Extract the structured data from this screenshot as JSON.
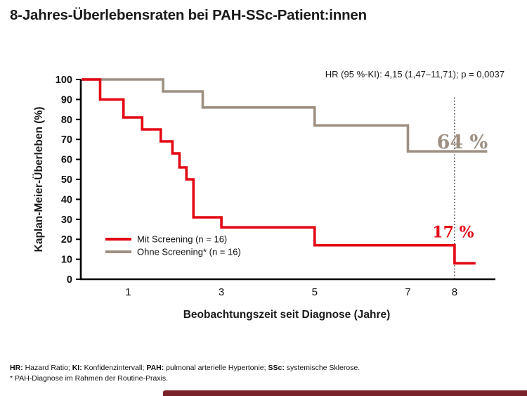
{
  "page": {
    "title": "8-Jahres-Überlebensraten bei PAH-SSc-Patient:innen"
  },
  "theme": {
    "text": "#1a1a1a",
    "red": "#e30613",
    "taupe": "#9d9083",
    "dotted_line": "#333333",
    "footer_bar": "#7a232b"
  },
  "chart_data": {
    "type": "line",
    "subtype": "kaplan_meier_step",
    "annotation": "HR (95 %-KI): 4,15 (1,47–11,71); p = 0,0037",
    "xlabel": "Beobachtungszeit seit Diagnose (Jahre)",
    "ylabel": "Kaplan-Meier-Überleben (%)",
    "xlim": [
      0,
      8.8
    ],
    "ylim": [
      0,
      100
    ],
    "xticks": [
      1,
      3,
      5,
      7,
      8
    ],
    "yticks": [
      0,
      10,
      20,
      30,
      40,
      50,
      60,
      70,
      80,
      90,
      100
    ],
    "grid": false,
    "legend_position": "lower-left",
    "reference_line_x": 8,
    "series": [
      {
        "id": "mit-screening",
        "name": "Mit Screening (n = 16)",
        "color": "#e30613",
        "end_value": 17,
        "end_label": "17 %",
        "points": [
          [
            0,
            100
          ],
          [
            0.4,
            100
          ],
          [
            0.4,
            90
          ],
          [
            0.9,
            90
          ],
          [
            0.9,
            81
          ],
          [
            1.3,
            81
          ],
          [
            1.3,
            75
          ],
          [
            1.7,
            75
          ],
          [
            1.7,
            69
          ],
          [
            1.95,
            69
          ],
          [
            1.95,
            63
          ],
          [
            2.1,
            63
          ],
          [
            2.1,
            56
          ],
          [
            2.25,
            56
          ],
          [
            2.25,
            50
          ],
          [
            2.4,
            50
          ],
          [
            2.4,
            31
          ],
          [
            3.0,
            31
          ],
          [
            3.0,
            26
          ],
          [
            5.0,
            26
          ],
          [
            5.0,
            17
          ],
          [
            8.0,
            17
          ],
          [
            8.0,
            8
          ],
          [
            8.45,
            8
          ]
        ]
      },
      {
        "id": "ohne-screening",
        "name": "Ohne Screening* (n = 16)",
        "color": "#9d9083",
        "end_value": 64,
        "end_label": "64 %",
        "points": [
          [
            0,
            100
          ],
          [
            1.75,
            100
          ],
          [
            1.75,
            94
          ],
          [
            2.6,
            94
          ],
          [
            2.6,
            86
          ],
          [
            5.0,
            86
          ],
          [
            5.0,
            77
          ],
          [
            7.0,
            77
          ],
          [
            7.0,
            64
          ],
          [
            8.7,
            64
          ]
        ]
      }
    ]
  },
  "footnotes": {
    "line1_segments": [
      {
        "t": "HR:",
        "b": true
      },
      {
        "t": " Hazard Ratio; ",
        "b": false
      },
      {
        "t": "KI:",
        "b": true
      },
      {
        "t": " Konfidenzintervall; ",
        "b": false
      },
      {
        "t": "PAH:",
        "b": true
      },
      {
        "t": " pulmonal arterielle Hypertonie; ",
        "b": false
      },
      {
        "t": "SSc:",
        "b": true
      },
      {
        "t": " systemische Sklerose.",
        "b": false
      }
    ],
    "line2": "* PAH-Diagnose im Rahmen der Routine-Praxis."
  }
}
